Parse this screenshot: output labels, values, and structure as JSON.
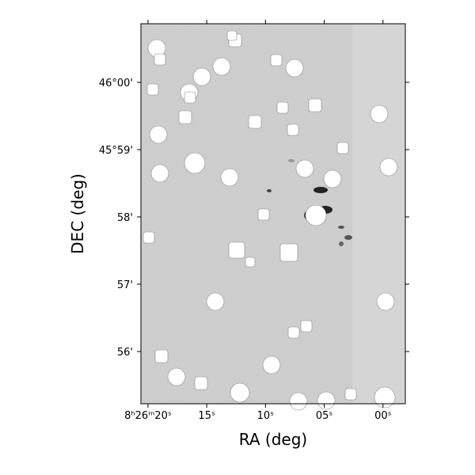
{
  "chart_data": {
    "type": "image",
    "xlabel": "RA (deg)",
    "ylabel": "DEC (deg)",
    "xlim": [
      20.6,
      -1.9
    ],
    "xticks": [
      {
        "value": 20,
        "label": "8ʰ26ᵐ20ˢ"
      },
      {
        "value": 15,
        "label": "15ˢ"
      },
      {
        "value": 10,
        "label": "10ˢ"
      },
      {
        "value": 5,
        "label": "05ˢ"
      },
      {
        "value": 0,
        "label": "00ˢ"
      }
    ],
    "ylim": [
      45.9204,
      46.0145
    ],
    "yticks": [
      {
        "value": 46.0,
        "label": "46°00'"
      },
      {
        "value": 45.98333,
        "label": "45°59'"
      },
      {
        "value": 45.96667,
        "label": "58'"
      },
      {
        "value": 45.95,
        "label": "57'"
      },
      {
        "value": 45.93333,
        "label": "56'"
      }
    ]
  }
}
